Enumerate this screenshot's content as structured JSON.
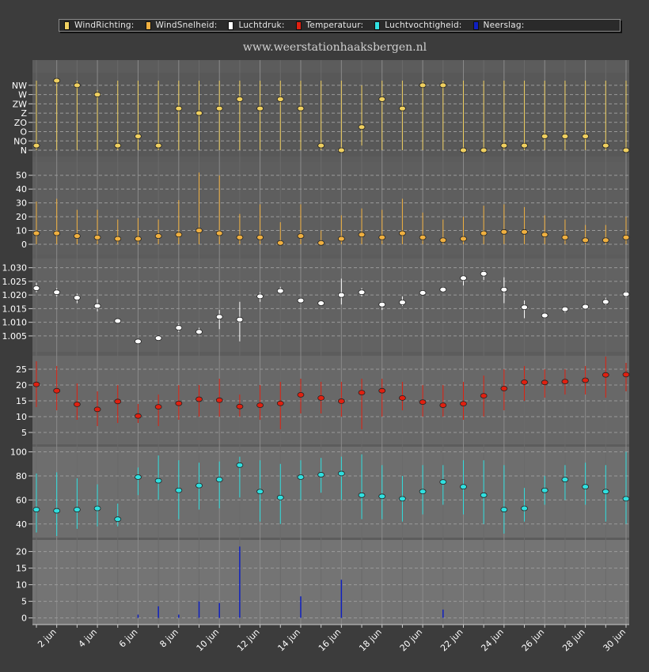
{
  "site_url": "www.weerstationhaaksbergen.nl",
  "legend": [
    {
      "label": "WindRichting:",
      "color": "#f0d060"
    },
    {
      "label": "WindSnelheid:",
      "color": "#f0b040"
    },
    {
      "label": "Luchtdruk:",
      "color": "#ffffff"
    },
    {
      "label": "Temperatuur:",
      "color": "#e02010"
    },
    {
      "label": "Luchtvochtigheid:",
      "color": "#30e0e0"
    },
    {
      "label": "Neerslag:",
      "color": "#1020c0"
    }
  ],
  "chart_data": {
    "type": "scatter",
    "x_tick_labels": [
      "2 jun",
      "4 jun",
      "6 jun",
      "8 jun",
      "10 jun",
      "12 jun",
      "14 jun",
      "16 jun",
      "18 jun",
      "20 jun",
      "22 jun",
      "24 jun",
      "26 jun",
      "28 jun",
      "30 jun"
    ],
    "days": [
      1,
      2,
      3,
      4,
      5,
      6,
      7,
      8,
      9,
      10,
      11,
      12,
      13,
      14,
      15,
      16,
      17,
      18,
      19,
      20,
      21,
      22,
      23,
      24,
      25,
      26,
      27,
      28,
      29,
      30
    ],
    "panels": [
      {
        "name": "WindRichting",
        "color": "#f0d060",
        "tick_labels": [
          "N",
          "NO",
          "O",
          "ZO",
          "Z",
          "ZW",
          "W",
          "NW"
        ],
        "ylim": [
          0,
          7.5
        ],
        "values": [
          0.5,
          7.5,
          7,
          6,
          0.5,
          1.5,
          0.5,
          4.5,
          4,
          4.5,
          5.5,
          4.5,
          5.5,
          4.5,
          0.5,
          0,
          2.5,
          5.5,
          4.5,
          7,
          7,
          0,
          0,
          0.5,
          0.5,
          1.5,
          1.5,
          1.5,
          0.5,
          0
        ],
        "high": [
          7.5,
          7.5,
          7.5,
          6.5,
          7.5,
          7.5,
          7.5,
          7.5,
          7.5,
          7.5,
          7.5,
          7.5,
          7.5,
          7.5,
          7.5,
          7.5,
          7,
          7.5,
          7.5,
          7.5,
          7.5,
          7.5,
          7.5,
          7.5,
          7.5,
          7.5,
          7.5,
          7.5,
          7.5,
          7.5
        ],
        "low": [
          0,
          0,
          0,
          0,
          0,
          0,
          0,
          0,
          0,
          0,
          0,
          0,
          0,
          0,
          0,
          0,
          0.5,
          0,
          0,
          0,
          0,
          0,
          0,
          0,
          0,
          0,
          0,
          0,
          0,
          0
        ]
      },
      {
        "name": "WindSnelheid",
        "color": "#f0b040",
        "ticks": [
          0,
          10,
          20,
          30,
          40,
          50
        ],
        "ylim": [
          0,
          55
        ],
        "values": [
          8,
          8,
          6,
          5,
          4,
          4,
          6,
          7,
          10,
          8,
          5,
          5,
          1,
          6,
          1,
          4,
          7,
          5,
          8,
          5,
          3,
          4,
          8,
          9,
          9,
          7,
          5,
          3,
          3,
          5
        ],
        "high": [
          31,
          33,
          25,
          25,
          18,
          19,
          18,
          32,
          52,
          50,
          22,
          29,
          16,
          29,
          10,
          21,
          26,
          25,
          33,
          23,
          18,
          20,
          28,
          29,
          27,
          21,
          18,
          14,
          14,
          20
        ],
        "low": [
          0,
          0,
          0,
          0,
          0,
          0,
          0,
          0,
          0,
          0,
          0,
          0,
          0,
          0,
          0,
          0,
          0,
          0,
          0,
          0,
          0,
          0,
          0,
          0,
          0,
          0,
          0,
          0,
          0,
          0
        ]
      },
      {
        "name": "Luchtdruk",
        "color": "#ffffff",
        "tick_labels": [
          "1.005",
          "1.010",
          "1.015",
          "1.020",
          "1.025",
          "1.030"
        ],
        "ticks": [
          1.005,
          1.01,
          1.015,
          1.02,
          1.025,
          1.03
        ],
        "ylim": [
          1.0015,
          1.0325
        ],
        "values": [
          1.0225,
          1.021,
          1.019,
          1.016,
          1.0105,
          1.003,
          1.0042,
          1.008,
          1.0065,
          1.012,
          1.011,
          1.0195,
          1.0215,
          1.018,
          1.017,
          1.02,
          1.021,
          1.0165,
          1.0173,
          1.0208,
          1.022,
          1.0262,
          1.0278,
          1.022,
          1.0155,
          1.0125,
          1.0148,
          1.0157,
          1.0175,
          1.0203
        ],
        "high": [
          1.0245,
          1.0225,
          1.0205,
          1.0185,
          1.011,
          1.0035,
          1.005,
          1.0095,
          1.008,
          1.0145,
          1.0175,
          1.021,
          1.023,
          1.019,
          1.018,
          1.026,
          1.0225,
          1.0175,
          1.0195,
          1.0215,
          1.023,
          1.027,
          1.029,
          1.0265,
          1.018,
          1.013,
          1.0155,
          1.0165,
          1.019,
          1.0215
        ],
        "low": [
          1.021,
          1.0195,
          1.017,
          1.014,
          1.0098,
          1.0025,
          1.0035,
          1.0065,
          1.0055,
          1.0075,
          1.003,
          1.0175,
          1.0205,
          1.017,
          1.016,
          1.0165,
          1.0195,
          1.0145,
          1.016,
          1.02,
          1.021,
          1.0235,
          1.0255,
          1.017,
          1.0115,
          1.0115,
          1.0135,
          1.015,
          1.0163,
          1.019
        ]
      },
      {
        "name": "Temperatuur",
        "color": "#e02010",
        "ticks": [
          5,
          10,
          15,
          20,
          25
        ],
        "ylim": [
          3,
          28
        ],
        "values": [
          20.2,
          18.2,
          13.9,
          12.3,
          14.8,
          10.2,
          13.1,
          14.2,
          15.5,
          15.2,
          13.2,
          13.6,
          14.2,
          16.9,
          15.9,
          14.9,
          17.6,
          18.2,
          15.9,
          14.6,
          13.6,
          14.1,
          16.6,
          18.9,
          20.9,
          20.8,
          21.1,
          21.5,
          23.2,
          23.3
        ],
        "high": [
          27.5,
          26,
          20.5,
          18,
          20,
          14,
          17,
          20,
          20,
          22,
          17,
          20,
          21,
          22,
          21,
          21,
          22,
          22,
          21,
          20,
          20,
          21,
          23,
          25,
          26,
          25,
          25,
          26,
          29,
          27
        ],
        "low": [
          13,
          12,
          9,
          7,
          8,
          8,
          7,
          9,
          10,
          10,
          10,
          9,
          6,
          11,
          11,
          10,
          6,
          10,
          12,
          10,
          10,
          9,
          10,
          12,
          15,
          16,
          17,
          17,
          16,
          18
        ]
      },
      {
        "name": "Luchtvochtigheid",
        "color": "#30e0e0",
        "ticks": [
          40,
          60,
          80,
          100
        ],
        "ylim": [
          30,
          103
        ],
        "values": [
          52,
          51,
          52,
          53,
          44,
          79,
          76,
          68,
          72,
          77,
          89,
          67,
          62,
          79,
          81,
          82,
          64,
          63,
          61,
          67,
          75,
          71,
          64,
          52,
          53,
          68,
          77,
          71,
          67,
          61
        ],
        "high": [
          82,
          83,
          78,
          73,
          57,
          87,
          97,
          93,
          91,
          92,
          96,
          93,
          90,
          93,
          95,
          96,
          98,
          89,
          80,
          89,
          89,
          93,
          93,
          89,
          70,
          80,
          89,
          91,
          89,
          100
        ],
        "low": [
          33,
          30,
          36,
          38,
          38,
          64,
          60,
          44,
          52,
          53,
          62,
          42,
          40,
          60,
          66,
          60,
          44,
          44,
          42,
          48,
          56,
          48,
          40,
          32,
          42,
          56,
          60,
          56,
          42,
          40
        ]
      },
      {
        "name": "Neerslag",
        "color": "#1020c0",
        "ticks": [
          0,
          5,
          10,
          15,
          20
        ],
        "ylim": [
          -2,
          23
        ],
        "values": [
          0,
          0,
          0,
          0,
          0,
          1,
          3.5,
          1,
          5,
          4.5,
          21.5,
          0,
          0,
          6.5,
          0,
          11.5,
          0,
          0,
          0,
          0,
          2.5,
          0,
          0,
          0,
          0,
          0,
          0,
          0,
          0,
          0
        ]
      }
    ]
  }
}
